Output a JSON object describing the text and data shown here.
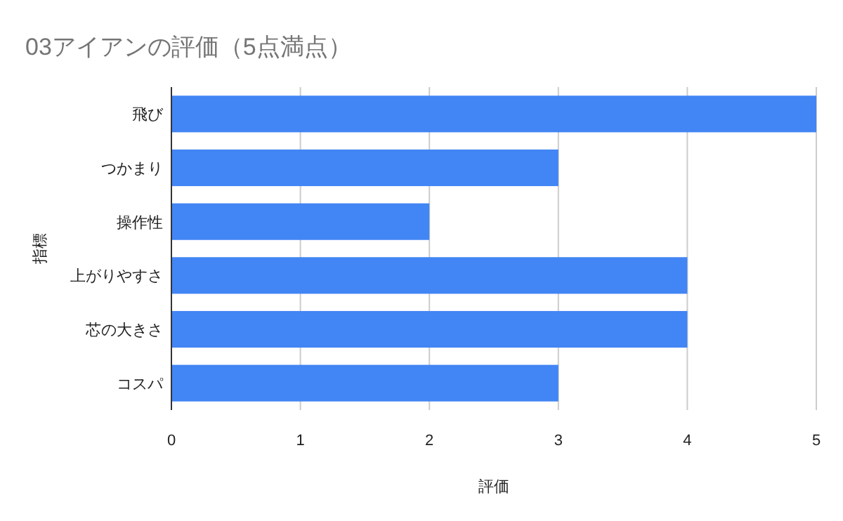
{
  "chart_data": {
    "type": "bar",
    "orientation": "horizontal",
    "title": "03アイアンの評価（5点満点）",
    "xlabel": "評価",
    "ylabel": "指標",
    "categories": [
      "飛び",
      "つかまり",
      "操作性",
      "上がりやすさ",
      "芯の大きさ",
      "コスパ"
    ],
    "values": [
      5,
      3,
      2,
      4,
      4,
      3
    ],
    "color": "#4285f4",
    "xlim": [
      0,
      5
    ],
    "xticks": [
      0,
      1,
      2,
      3,
      4,
      5
    ],
    "grid": "x"
  }
}
